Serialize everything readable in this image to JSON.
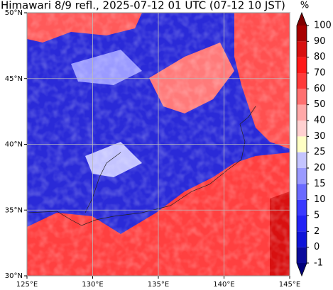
{
  "map": {
    "title": "Himawari 8/9 refl., 2025-07-12 01 UTC (07-12 10 JST)",
    "xlim": [
      125,
      145
    ],
    "ylim": [
      30,
      50
    ],
    "xticks": [
      {
        "value": 125,
        "label": "125°E"
      },
      {
        "value": 130,
        "label": "130°E"
      },
      {
        "value": 135,
        "label": "135°E"
      },
      {
        "value": 140,
        "label": "140°E"
      },
      {
        "value": 145,
        "label": "145°E"
      }
    ],
    "yticks": [
      {
        "value": 30,
        "label": "30°N"
      },
      {
        "value": 35,
        "label": "35°N"
      },
      {
        "value": 40,
        "label": "40°N"
      },
      {
        "value": 45,
        "label": "45°N"
      },
      {
        "value": 50,
        "label": "50°N"
      }
    ],
    "grid": true,
    "colorbar": {
      "label": "%",
      "ticks": [
        -1,
        0,
        2,
        5,
        10,
        15,
        20,
        25,
        30,
        40,
        50,
        60,
        70,
        80,
        90,
        100
      ],
      "colors": [
        "#0a0a9c",
        "#0f14d8",
        "#2222f5",
        "#3a3aff",
        "#6a6aff",
        "#9a9aff",
        "#c4c4ff",
        "#ffffc4",
        "#ffd0d0",
        "#ffa8a8",
        "#ff7070",
        "#ff3a3a",
        "#ff1818",
        "#d81010",
        "#a80000"
      ],
      "under_color": "#00007a",
      "over_color": "#800000"
    }
  }
}
